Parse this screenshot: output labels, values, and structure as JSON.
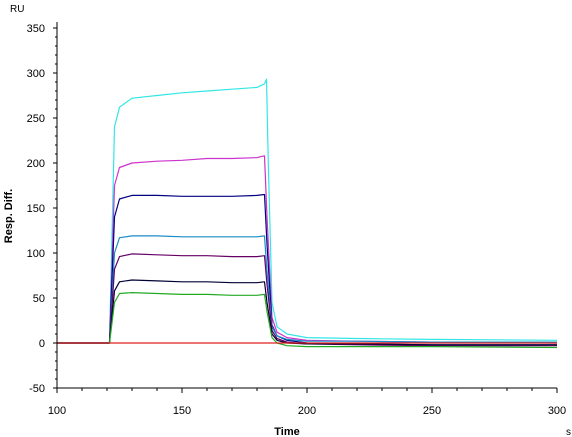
{
  "chart_data": {
    "type": "line",
    "title": "",
    "xlabel": "Time",
    "ylabel": "Resp. Diff.",
    "x_unit": "s",
    "y_unit": "RU",
    "xlim": [
      100,
      300
    ],
    "ylim": [
      -50,
      350
    ],
    "x_ticks": [
      100,
      150,
      200,
      250,
      300
    ],
    "y_ticks": [
      -50,
      0,
      50,
      100,
      150,
      200,
      250,
      300,
      350
    ],
    "grid": false,
    "legend": "none",
    "series": [
      {
        "color": "#33e6e6",
        "x": [
          100,
          121,
          123,
          125,
          130,
          140,
          150,
          160,
          170,
          180,
          183,
          183.8,
          184.5,
          186,
          188,
          192,
          200,
          220,
          250,
          300
        ],
        "y": [
          0,
          0,
          240,
          262,
          272,
          275,
          278,
          280,
          282,
          284,
          288,
          293,
          200,
          45,
          18,
          10,
          6,
          5,
          4,
          3
        ]
      },
      {
        "color": "#cc33cc",
        "x": [
          100,
          121,
          123,
          125,
          130,
          140,
          150,
          160,
          170,
          180,
          183,
          184,
          186,
          188,
          192,
          200,
          220,
          250,
          300
        ],
        "y": [
          0,
          0,
          175,
          195,
          200,
          202,
          203,
          205,
          205,
          206,
          208,
          140,
          28,
          12,
          6,
          3,
          2,
          1,
          0
        ]
      },
      {
        "color": "#000080",
        "x": [
          100,
          121,
          123,
          125,
          130,
          140,
          150,
          160,
          170,
          180,
          183,
          184,
          186,
          188,
          192,
          200,
          220,
          250,
          300
        ],
        "y": [
          0,
          0,
          140,
          160,
          164,
          164,
          163,
          163,
          163,
          164,
          165,
          110,
          20,
          8,
          3,
          0,
          -1,
          -2,
          -2
        ]
      },
      {
        "color": "#1a8cc8",
        "x": [
          100,
          121,
          123,
          125,
          130,
          140,
          150,
          160,
          170,
          180,
          183,
          184,
          186,
          188,
          192,
          200,
          220,
          250,
          300
        ],
        "y": [
          0,
          0,
          100,
          117,
          119,
          119,
          118,
          118,
          118,
          118,
          119,
          80,
          18,
          8,
          4,
          2,
          2,
          1,
          1
        ]
      },
      {
        "color": "#660066",
        "x": [
          100,
          121,
          123,
          125,
          130,
          140,
          150,
          160,
          170,
          180,
          183,
          184,
          186,
          188,
          192,
          200,
          220,
          250,
          300
        ],
        "y": [
          0,
          0,
          82,
          96,
          99,
          98,
          97,
          97,
          96,
          96,
          97,
          65,
          14,
          5,
          1,
          -1,
          -2,
          -3,
          -3
        ]
      },
      {
        "color": "#000033",
        "x": [
          100,
          121,
          123,
          125,
          130,
          140,
          150,
          160,
          170,
          180,
          183,
          184,
          186,
          188,
          192,
          200,
          220,
          250,
          300
        ],
        "y": [
          0,
          0,
          58,
          68,
          70,
          69,
          68,
          68,
          67,
          67,
          68,
          45,
          10,
          3,
          0,
          -1,
          -1,
          -2,
          -2
        ]
      },
      {
        "color": "#22aa22",
        "x": [
          100,
          121,
          123,
          125,
          130,
          140,
          150,
          160,
          170,
          180,
          183,
          184,
          186,
          188,
          192,
          200,
          220,
          250,
          300
        ],
        "y": [
          0,
          0,
          45,
          55,
          56,
          55,
          54,
          54,
          53,
          53,
          54,
          35,
          6,
          0,
          -3,
          -4,
          -4,
          -4,
          -5
        ]
      },
      {
        "color": "#e02020",
        "x": [
          100,
          300
        ],
        "y": [
          0,
          0
        ]
      }
    ]
  }
}
